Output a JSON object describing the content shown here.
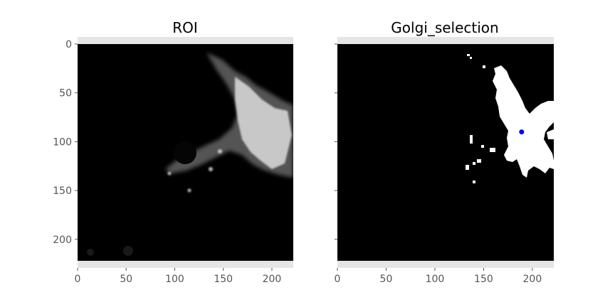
{
  "colors": {
    "axes_background": "#e5e5e5",
    "image_background": "#000000",
    "golgi_mask": "#ffffff",
    "golgi_centroid": "#0000ff",
    "roi_signal": "#dcdcdc",
    "tick_text": "#555555"
  },
  "chart_data": [
    {
      "type": "image",
      "title": "ROI",
      "xlabel": "",
      "ylabel": "",
      "xlim": [
        0,
        222
      ],
      "ylim": [
        222,
        0
      ],
      "xticks": [
        0,
        50,
        100,
        150,
        200
      ],
      "yticks": [
        0,
        50,
        100,
        150,
        200
      ],
      "xtick_labels": [
        "0",
        "50",
        "100",
        "150",
        "200"
      ],
      "ytick_labels": [
        "0",
        "50",
        "100",
        "150",
        "200"
      ],
      "grid": false,
      "colormap": "gray"
    },
    {
      "type": "image",
      "title": "Golgi_selection",
      "xlabel": "",
      "ylabel": "",
      "xlim": [
        0,
        222
      ],
      "ylim": [
        222,
        0
      ],
      "xticks": [
        0,
        50,
        100,
        150,
        200
      ],
      "yticks": [
        0,
        50,
        100,
        150,
        200
      ],
      "xtick_labels": [
        "0",
        "50",
        "100",
        "150",
        "200"
      ],
      "ytick_labels": [
        "",
        "",
        "",
        "",
        ""
      ],
      "grid": false,
      "colormap": "binary mask",
      "marker": {
        "x": 189,
        "y": 90,
        "color": "#0000ff"
      }
    }
  ]
}
